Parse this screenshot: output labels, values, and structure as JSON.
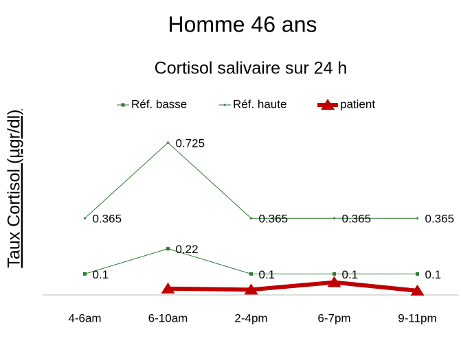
{
  "chart_data": {
    "type": "line",
    "title": "Homme 46 ans",
    "subtitle": "Cortisol salivaire sur 24 h",
    "y_label": "Taux Cortisol (µgr/dl)",
    "categories": [
      "4-6am",
      "6-10am",
      "2-4pm",
      "6-7pm",
      "9-11pm"
    ],
    "ylim": [
      0,
      0.8
    ],
    "legend": "top",
    "series": [
      {
        "name": "Réf. basse",
        "color": "#2e7d32",
        "marker": "square",
        "line_width": 1,
        "data_labels": true,
        "values": [
          0.1,
          0.22,
          0.1,
          0.1,
          0.1
        ]
      },
      {
        "name": "Réf. haute",
        "color": "#2e7d32",
        "marker": "diamond",
        "line_width": 1,
        "data_labels": true,
        "values": [
          0.365,
          0.725,
          0.365,
          0.365,
          0.365
        ]
      },
      {
        "name": "patient",
        "color": "#c00000",
        "marker": "triangle",
        "line_width": 6,
        "data_labels": false,
        "values": [
          null,
          0.03,
          0.025,
          0.06,
          0.02
        ]
      }
    ]
  }
}
